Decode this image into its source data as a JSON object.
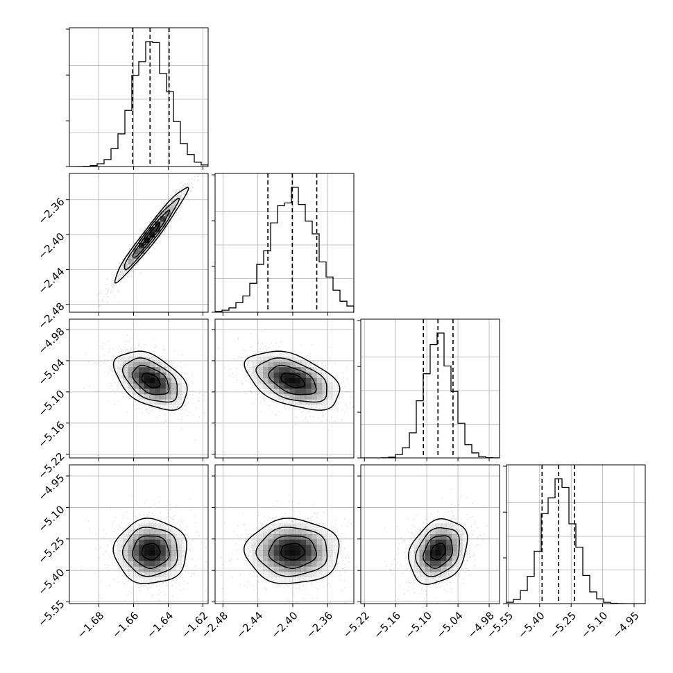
{
  "chart_data": {
    "type": "corner",
    "grid": true,
    "axes": [
      {
        "ticks": [
          "−1.68",
          "−1.66",
          "−1.64",
          "−1.62"
        ],
        "tick_values": [
          -1.68,
          -1.66,
          -1.64,
          -1.62
        ],
        "range": [
          -1.697,
          -1.617
        ]
      },
      {
        "ticks": [
          "−2.48",
          "−2.44",
          "−2.40",
          "−2.36"
        ],
        "tick_values": [
          -2.48,
          -2.44,
          -2.4,
          -2.36
        ],
        "range": [
          -2.489,
          -2.33
        ]
      },
      {
        "ticks": [
          "−5.22",
          "−5.16",
          "−5.10",
          "−5.04",
          "−4.98"
        ],
        "tick_values": [
          -5.22,
          -5.16,
          -5.1,
          -5.04,
          -4.98
        ],
        "range": [
          -5.227,
          -4.96
        ]
      },
      {
        "ticks": [
          "−5.55",
          "−5.40",
          "−5.25",
          "−5.10",
          "−4.95"
        ],
        "tick_values": [
          -5.55,
          -5.4,
          -5.25,
          -5.1,
          -4.95
        ],
        "range": [
          -5.558,
          -4.897
        ]
      }
    ],
    "marginals": [
      {
        "quantiles": [
          -1.6605,
          -1.6505,
          -1.6395
        ],
        "mean": -1.65,
        "sd": 0.0105,
        "peak": [
          -1.65,
          0.9
        ]
      },
      {
        "quantiles": [
          -2.4285,
          -2.4005,
          -2.3725
        ],
        "mean": -2.4,
        "sd": 0.027,
        "peak": [
          -2.401,
          0.85
        ]
      },
      {
        "quantiles": [
          -5.1065,
          -5.0785,
          -5.0495
        ],
        "mean": -5.078,
        "sd": 0.028,
        "peak": [
          -5.078,
          0.92
        ]
      },
      {
        "quantiles": [
          -5.3885,
          -5.3095,
          -5.2335
        ],
        "mean": -5.31,
        "sd": 0.077,
        "peak": [
          -5.31,
          0.88
        ]
      }
    ],
    "correlations": {
      "1-0": 0.97,
      "2-0": -0.45,
      "2-1": -0.45,
      "3-0": 0.0,
      "3-1": 0.0,
      "3-2": 0.25
    },
    "contour_levels": [
      0.5,
      1.0,
      1.5,
      2.0
    ]
  }
}
